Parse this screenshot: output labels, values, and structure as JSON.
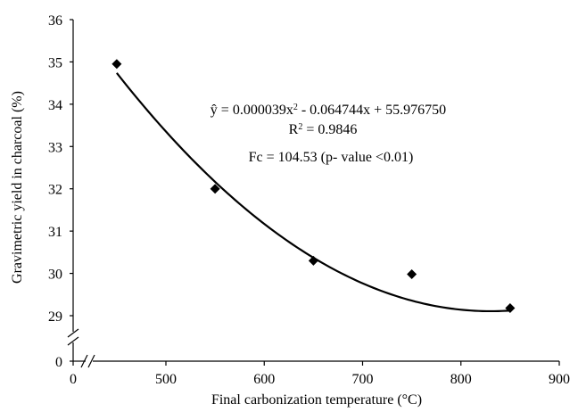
{
  "chart_data": {
    "type": "scatter",
    "xlabel": "Final carbonization temperature (°C)",
    "ylabel": "Gravimetric yield in charcoal (%)",
    "x_ticks": [
      0,
      500,
      600,
      700,
      800,
      900
    ],
    "y_ticks": [
      0,
      29,
      30,
      31,
      32,
      33,
      34,
      35,
      36
    ],
    "xlim": [
      0,
      900
    ],
    "ylim": [
      29,
      36
    ],
    "axis_breaks": [
      "x",
      "y"
    ],
    "grid": false,
    "points": [
      {
        "x": 450,
        "y": 34.95
      },
      {
        "x": 550,
        "y": 32.0
      },
      {
        "x": 650,
        "y": 30.3
      },
      {
        "x": 750,
        "y": 29.98
      },
      {
        "x": 850,
        "y": 29.18
      }
    ],
    "fit": {
      "type": "quadratic",
      "a": 3.9e-05,
      "b": -0.064744,
      "c": 55.97675,
      "x_range": [
        450,
        850
      ]
    },
    "annotations": {
      "equation": "ŷ = 0.000039x² - 0.064744x + 55.976750",
      "r2": "R² = 0.9846",
      "fc": "Fc = 104.53 (p- value <0.01)"
    }
  }
}
